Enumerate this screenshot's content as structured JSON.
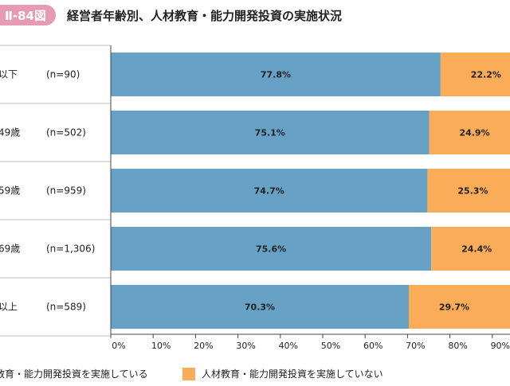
{
  "figure": {
    "number": "Ⅱ-84図",
    "title": "経営者年齢別、人材教育・能力開発投資の実施状況"
  },
  "colors": {
    "implementing": "#67a1c5",
    "not_implementing": "#fbac58",
    "badge": "#e79ab4"
  },
  "chart_data": {
    "type": "bar",
    "orientation": "horizontal",
    "stacked": true,
    "title": "経営者年齢別、人材教育・能力開発投資の実施状況",
    "categories": [
      "以下",
      "49歳",
      "59歳",
      "69歳",
      "以上"
    ],
    "sample_sizes": [
      "(n=90)",
      "(n=502)",
      "(n=959)",
      "(n=1,306)",
      "(n=589)"
    ],
    "series": [
      {
        "name": "人材教育・能力開発投資を実施している",
        "values": [
          77.8,
          75.1,
          74.7,
          75.6,
          70.3
        ],
        "labels": [
          "77.8%",
          "75.1%",
          "74.7%",
          "75.6%",
          "70.3%"
        ]
      },
      {
        "name": "人材教育・能力開発投資を実施していない",
        "values": [
          22.2,
          24.9,
          25.3,
          24.4,
          29.7
        ],
        "labels": [
          "22.2%",
          "24.9%",
          "25.3%",
          "24.4%",
          "29.7%"
        ]
      }
    ],
    "xlim": [
      0,
      100
    ],
    "xticks": [
      "0%",
      "10%",
      "20%",
      "30%",
      "40%",
      "50%",
      "60%",
      "70%",
      "80%",
      "90%"
    ],
    "grid": false,
    "legend_position": "bottom"
  },
  "legend": {
    "implementing": "人材教育・能力開発投資を実施している",
    "not_implementing": "人材教育・能力開発投資を実施していない"
  }
}
